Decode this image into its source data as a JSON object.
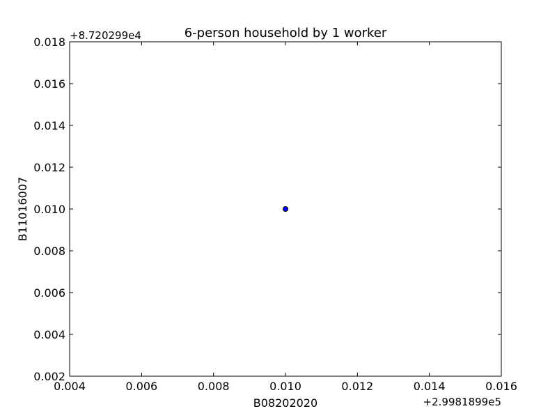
{
  "chart_data": {
    "type": "scatter",
    "title": "6-person household by 1 worker",
    "xlabel": "B08202020",
    "ylabel": "B11016007",
    "x_offset_label": "+2.9981899e5",
    "y_offset_label": "+8.720299e4",
    "xlim": [
      0.004,
      0.016
    ],
    "ylim": [
      0.002,
      0.018
    ],
    "x_ticks": [
      "0.004",
      "0.006",
      "0.008",
      "0.010",
      "0.012",
      "0.014",
      "0.016"
    ],
    "y_ticks": [
      "0.002",
      "0.004",
      "0.006",
      "0.008",
      "0.010",
      "0.012",
      "0.014",
      "0.016",
      "0.018"
    ],
    "grid": false,
    "points": [
      {
        "x": 0.01,
        "y": 0.01
      }
    ],
    "marker_color": "#0000ff",
    "marker_edge_color": "#000000"
  }
}
